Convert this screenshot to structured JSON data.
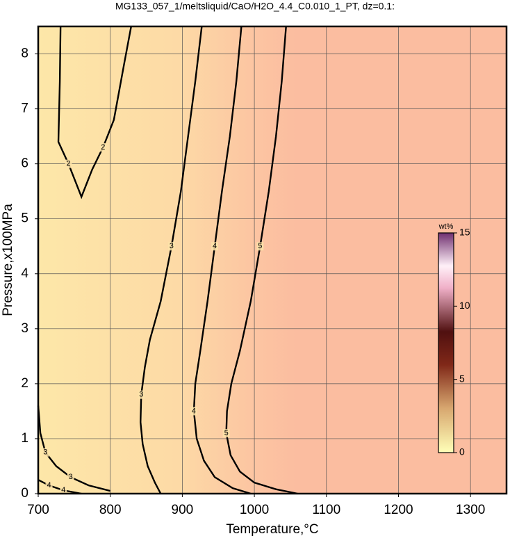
{
  "chart_data": {
    "type": "contour",
    "title": "MG133_057_1/meltsliquid/CaO/H2O_4.4_C0.010_1_PT, dz=0.1:",
    "x_label": "Temperature,°C",
    "y_label": "Pressure,x100MPa",
    "xlim": [
      700,
      1350
    ],
    "ylim": [
      0,
      8.5
    ],
    "xticks": [
      700,
      800,
      900,
      1000,
      1100,
      1200,
      1300
    ],
    "yticks": [
      0,
      1,
      2,
      3,
      4,
      5,
      6,
      7,
      8
    ],
    "grid": true,
    "contours": [
      {
        "level": 2,
        "x": [
          731,
          730,
          728,
          742,
          760,
          775,
          790,
          805,
          812,
          819,
          829
        ],
        "y": [
          8.5,
          7.5,
          6.4,
          6.0,
          5.4,
          5.9,
          6.3,
          6.8,
          7.3,
          7.8,
          8.5
        ]
      },
      {
        "level": 3,
        "x": [
          927,
          918,
          908,
          898,
          885,
          870,
          855,
          848,
          843,
          842,
          845,
          852,
          862,
          870
        ],
        "y": [
          8.5,
          7.5,
          6.5,
          5.5,
          4.5,
          3.5,
          2.8,
          2.3,
          1.8,
          1.3,
          0.9,
          0.5,
          0.2,
          0
        ]
      },
      {
        "level": 3,
        "x": [
          700,
          703,
          710,
          725,
          745,
          770,
          800
        ],
        "y": [
          1.6,
          1.1,
          0.75,
          0.5,
          0.3,
          0.15,
          0.05
        ]
      },
      {
        "level": 4,
        "x": [
          982,
          975,
          966,
          955,
          945,
          935,
          925,
          918,
          916,
          920,
          930,
          945,
          970,
          995
        ],
        "y": [
          8.5,
          7.5,
          6.5,
          5.5,
          4.5,
          3.5,
          2.6,
          2.0,
          1.5,
          1.0,
          0.6,
          0.3,
          0.1,
          0
        ]
      },
      {
        "level": 4,
        "x": [
          700,
          715,
          735,
          760
        ],
        "y": [
          0.25,
          0.15,
          0.06,
          0
        ]
      },
      {
        "level": 5,
        "x": [
          1044,
          1038,
          1030,
          1020,
          1008,
          995,
          980,
          968,
          962,
          961,
          967,
          980,
          1000,
          1030,
          1060
        ],
        "y": [
          8.5,
          7.5,
          6.5,
          5.5,
          4.5,
          3.5,
          2.6,
          2.0,
          1.5,
          1.1,
          0.7,
          0.4,
          0.2,
          0.08,
          0
        ]
      }
    ],
    "colorbar": {
      "label": "wt%",
      "lim": [
        0,
        15
      ],
      "ticks": [
        0,
        5,
        10,
        15
      ]
    }
  }
}
